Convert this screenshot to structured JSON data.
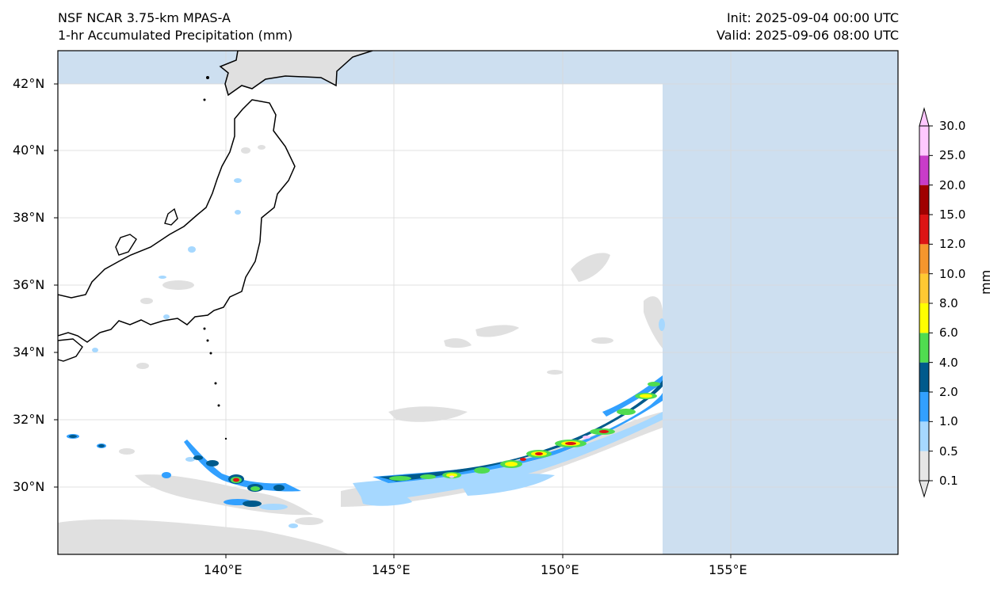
{
  "header": {
    "model_name": "NSF NCAR 3.75-km MPAS-A",
    "field_name": "1-hr Accumulated Precipitation (mm)",
    "init_time": "Init: 2025-09-04 00:00 UTC",
    "valid_time": "Valid: 2025-09-06 08:00 UTC"
  },
  "map": {
    "lon_ticks": [
      "140°E",
      "145°E",
      "150°E",
      "155°E"
    ],
    "lat_ticks": [
      "42°N",
      "40°N",
      "38°N",
      "36°N",
      "34°N",
      "32°N",
      "30°N"
    ],
    "ocean_color": "#cddff0",
    "land_color": "#e0e0e0",
    "coastline_color": "#000000"
  },
  "colorbar": {
    "units": "mm",
    "levels": [
      "0.1",
      "0.5",
      "1.0",
      "2.0",
      "4.0",
      "6.0",
      "8.0",
      "10.0",
      "12.0",
      "15.0",
      "20.0",
      "25.0",
      "30.0"
    ],
    "colors": [
      "#e6e6e6",
      "#a6d8ff",
      "#32a0ff",
      "#005a8c",
      "#50dc50",
      "#ffff00",
      "#ffc832",
      "#f5962d",
      "#dc1414",
      "#a00000",
      "#c83cc8",
      "#ffc8ff"
    ]
  }
}
